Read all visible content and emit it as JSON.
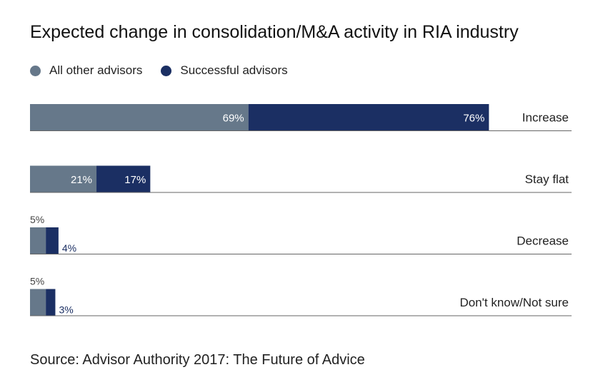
{
  "colors": {
    "all_other": "#66788a",
    "successful": "#1b2f63",
    "label_dark": "#444444",
    "label_navy": "#1b2f63",
    "baseline": "#666666"
  },
  "legend": {
    "items": [
      {
        "label": "All other advisors",
        "color": "#66788a"
      },
      {
        "label": "Successful advisors",
        "color": "#1b2f63"
      }
    ]
  },
  "source": "Source: Advisor Authority 2017: The Future of Advice",
  "chart_data": {
    "type": "bar",
    "orientation": "horizontal",
    "stacked": true,
    "title": "Expected change in consolidation/M&A activity in RIA industry",
    "categories": [
      "Increase",
      "Stay flat",
      "Decrease",
      "Don't know/Not sure"
    ],
    "series": [
      {
        "name": "All other advisors",
        "values": [
          69,
          21,
          5,
          5
        ],
        "labels": [
          "69%",
          "21%",
          "5%",
          "5%"
        ]
      },
      {
        "name": "Successful advisors",
        "values": [
          76,
          17,
          4,
          3
        ],
        "labels": [
          "76%",
          "17%",
          "4%",
          "3%"
        ]
      }
    ],
    "unit": "%",
    "legend_position": "top-left",
    "grid": false
  }
}
